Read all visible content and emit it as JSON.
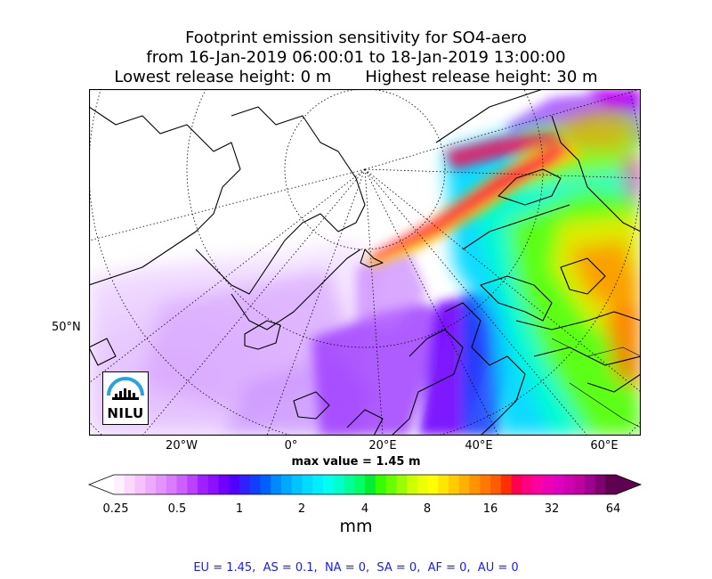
{
  "title": {
    "line1": "Footprint emission sensitivity for SO4-aero",
    "line2": "from 16-Jan-2019 06:00:01 to 18-Jan-2019 13:00:00",
    "lowest": "Lowest release height: 0 m",
    "highest": "Highest release height: 30 m"
  },
  "axes": {
    "x_ticks": [
      "20°W",
      "0°",
      "20°E",
      "40°E",
      "60°E"
    ],
    "y_ticks": [
      "50°N"
    ]
  },
  "max_value": "max value = 1.45 m",
  "colorbar": {
    "ticks": [
      "0.25",
      "0.5",
      "1",
      "2",
      "4",
      "8",
      "16",
      "32",
      "64"
    ],
    "unit": "mm",
    "colors": [
      "#fff0ff",
      "#fbd9ff",
      "#f5c2ff",
      "#eeaaff",
      "#e494ff",
      "#d87bff",
      "#cc60ff",
      "#bb40ff",
      "#a020ff",
      "#8c10ff",
      "#7000ff",
      "#5000ff",
      "#3020ff",
      "#1040ff",
      "#0060ff",
      "#0088ff",
      "#00a8ff",
      "#00c4ff",
      "#00dcff",
      "#00eeff",
      "#00ffee",
      "#00ffcc",
      "#00ff99",
      "#00ff66",
      "#00ee33",
      "#33ff00",
      "#66ff00",
      "#99ff00",
      "#ccff00",
      "#eeff00",
      "#ffff00",
      "#ffe600",
      "#ffcc00",
      "#ffb000",
      "#ff9400",
      "#ff7800",
      "#ff5c00",
      "#ff3000",
      "#ff0050",
      "#ff0080",
      "#ff00a0",
      "#f000b4",
      "#e000c0",
      "#d000b0",
      "#c000a0",
      "#a00090",
      "#800070",
      "#600050"
    ]
  },
  "regions": "EU = 1.45,  AS = 0.1,  NA = 0,  SA = 0,  AF = 0,  AU = 0",
  "logo": "NILU"
}
